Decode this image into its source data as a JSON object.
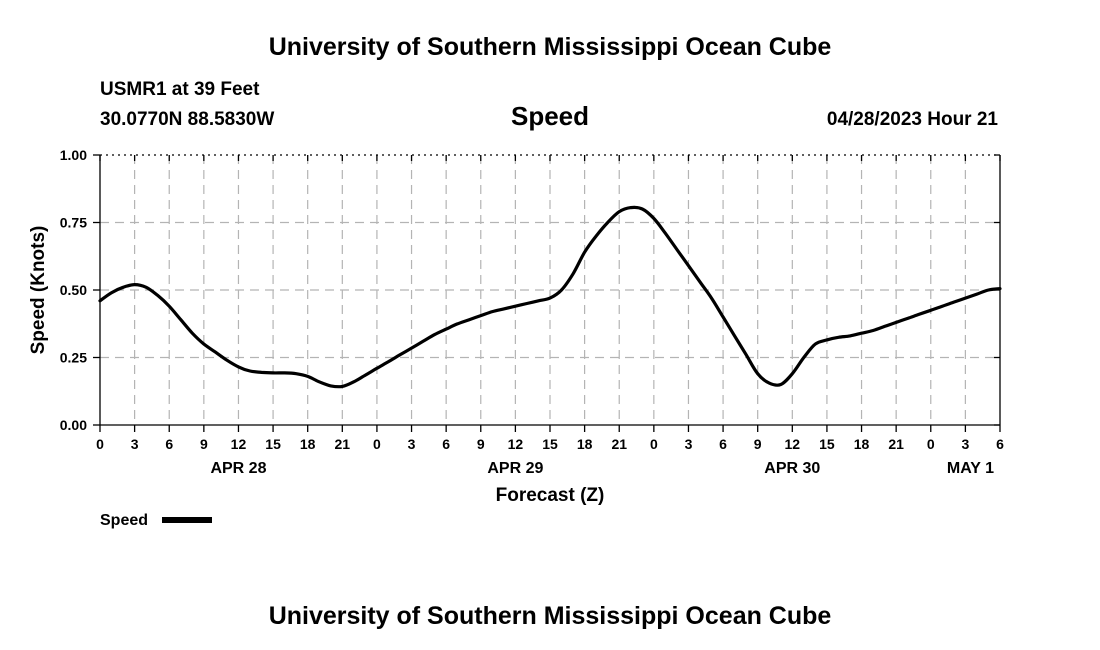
{
  "title": "University of Southern Mississippi Ocean Cube",
  "footer_title": "University of Southern Mississippi Ocean Cube",
  "station": {
    "name": "USMR1 at 39 Feet",
    "location": "30.0770N  88.5830W"
  },
  "variable": "Speed",
  "timestamp": "04/28/2023 Hour 21",
  "legend": {
    "label": "Speed"
  },
  "chart_data": {
    "type": "line",
    "ylabel": "Speed (Knots)",
    "xlabel": "Forecast (Z)",
    "ylim": [
      0,
      1.0
    ],
    "yticks": [
      "0.00",
      "0.25",
      "0.50",
      "0.75",
      "1.00"
    ],
    "x_unit": "hours",
    "xlim": [
      0,
      78
    ],
    "xticks": [
      "0",
      "3",
      "6",
      "9",
      "12",
      "15",
      "18",
      "21",
      "0",
      "3",
      "6",
      "9",
      "12",
      "15",
      "18",
      "21",
      "0",
      "3",
      "6",
      "9",
      "12",
      "15",
      "18",
      "21",
      "0",
      "3",
      "6"
    ],
    "date_labels": [
      {
        "label": "APR 28",
        "hour": 12
      },
      {
        "label": "APR 29",
        "hour": 36
      },
      {
        "label": "APR 30",
        "hour": 60
      },
      {
        "label": "MAY 1",
        "hour": 78
      }
    ],
    "grid": true,
    "legend_position": "bottom-left",
    "series": [
      {
        "name": "Speed",
        "color": "#000000",
        "x": [
          0,
          1,
          2,
          3,
          4,
          5,
          6,
          7,
          8,
          9,
          10,
          11,
          12,
          13,
          14,
          15,
          16,
          17,
          18,
          19,
          20,
          21,
          22,
          23,
          24,
          25,
          26,
          27,
          28,
          29,
          30,
          31,
          32,
          33,
          34,
          35,
          36,
          37,
          38,
          39,
          40,
          41,
          42,
          43,
          44,
          45,
          46,
          47,
          48,
          49,
          50,
          51,
          52,
          53,
          54,
          55,
          56,
          57,
          58,
          59,
          60,
          61,
          62,
          63,
          64,
          65,
          66,
          67,
          68,
          69,
          70,
          71,
          72,
          73,
          74,
          75,
          76,
          77,
          78
        ],
        "values": [
          0.46,
          0.49,
          0.51,
          0.52,
          0.51,
          0.48,
          0.44,
          0.39,
          0.34,
          0.3,
          0.27,
          0.24,
          0.215,
          0.2,
          0.195,
          0.193,
          0.193,
          0.19,
          0.18,
          0.16,
          0.145,
          0.143,
          0.16,
          0.185,
          0.21,
          0.235,
          0.26,
          0.285,
          0.31,
          0.335,
          0.355,
          0.375,
          0.39,
          0.405,
          0.42,
          0.43,
          0.44,
          0.45,
          0.46,
          0.47,
          0.5,
          0.56,
          0.64,
          0.7,
          0.75,
          0.79,
          0.805,
          0.8,
          0.765,
          0.71,
          0.65,
          0.59,
          0.53,
          0.47,
          0.4,
          0.33,
          0.26,
          0.19,
          0.155,
          0.15,
          0.19,
          0.25,
          0.3,
          0.315,
          0.325,
          0.33,
          0.34,
          0.35,
          0.365,
          0.38,
          0.395,
          0.41,
          0.425,
          0.44,
          0.455,
          0.47,
          0.485,
          0.5,
          0.505
        ]
      }
    ]
  }
}
